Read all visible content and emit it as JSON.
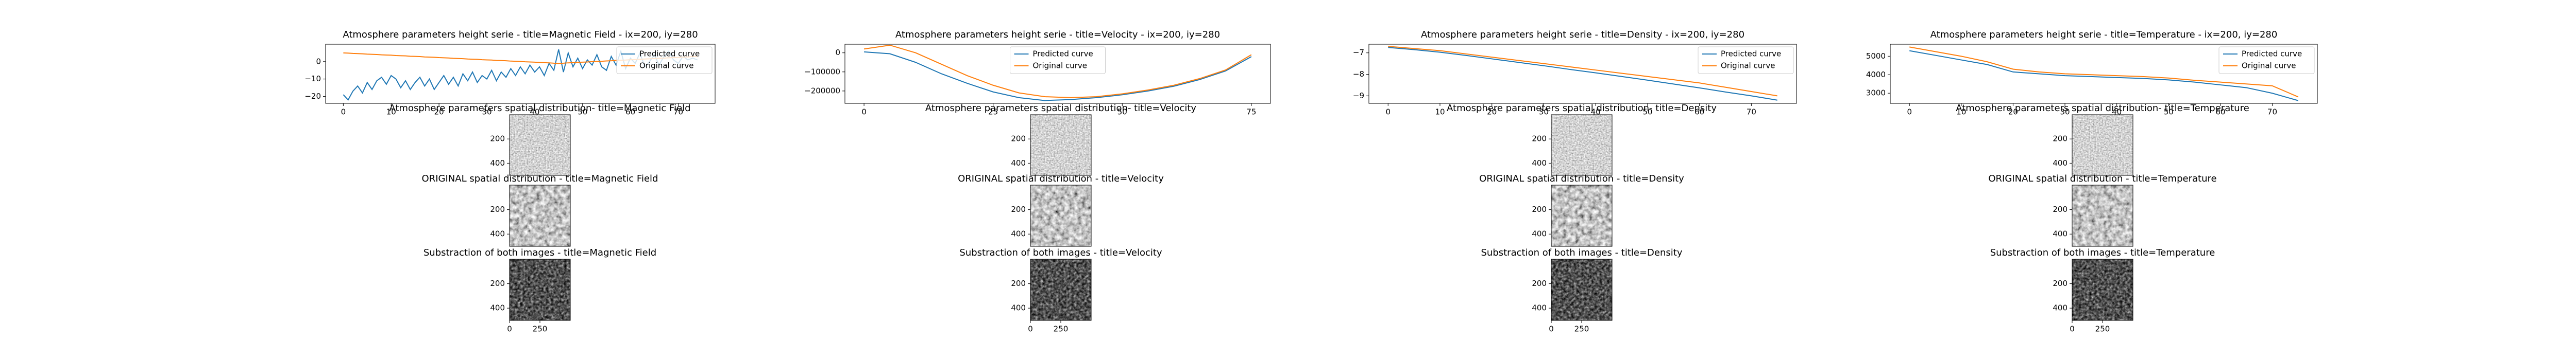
{
  "chart_data": [
    {
      "type": "line",
      "title": "Atmosphere parameters height serie - title=Magnetic Field - ix=200, iy=280",
      "x": [
        0,
        1,
        2,
        3,
        4,
        5,
        6,
        7,
        8,
        9,
        10,
        11,
        12,
        13,
        14,
        15,
        16,
        17,
        18,
        19,
        20,
        21,
        22,
        23,
        24,
        25,
        26,
        27,
        28,
        29,
        30,
        31,
        32,
        33,
        34,
        35,
        36,
        37,
        38,
        39,
        40,
        41,
        42,
        43,
        44,
        45,
        46,
        47,
        48,
        49,
        50,
        51,
        52,
        53,
        54,
        55,
        56,
        57,
        58,
        59,
        60,
        61,
        62,
        63,
        64,
        65,
        66,
        67,
        68,
        69,
        70,
        71,
        72,
        73,
        74
      ],
      "series": [
        {
          "name": "Predicted curve",
          "color": "#1f77b4",
          "values": [
            -19,
            -22,
            -17,
            -14,
            -18,
            -12,
            -16,
            -11,
            -9,
            -13,
            -8,
            -10,
            -15,
            -11,
            -16,
            -12,
            -9,
            -14,
            -10,
            -16,
            -12,
            -8,
            -13,
            -9,
            -14,
            -7,
            -11,
            -6,
            -12,
            -8,
            -10,
            -5,
            -11,
            -6,
            -9,
            -4,
            -8,
            -3,
            -7,
            -2,
            -6,
            -3,
            -8,
            -1,
            -5,
            7,
            -6,
            5,
            -3,
            2,
            -4,
            1,
            -2,
            4,
            -3,
            -5,
            3,
            -2,
            6,
            -4,
            2,
            -1,
            5,
            -3,
            0,
            4,
            -2,
            3,
            6,
            1,
            -1,
            3,
            1,
            2,
            1
          ]
        },
        {
          "name": "Original curve",
          "color": "#ff7f0e",
          "values": [
            5.0,
            4.9,
            4.7,
            4.6,
            4.5,
            4.3,
            4.2,
            4.1,
            3.9,
            3.8,
            3.7,
            3.5,
            3.4,
            3.3,
            3.1,
            3.0,
            2.9,
            2.7,
            2.6,
            2.5,
            2.3,
            2.2,
            2.1,
            1.9,
            1.8,
            1.7,
            1.5,
            1.4,
            1.3,
            1.1,
            1.0,
            0.9,
            0.7,
            0.6,
            0.5,
            0.3,
            0.2,
            0.1,
            -0.1,
            -0.2,
            -0.3,
            -0.5,
            -0.6,
            -0.7,
            -0.9,
            -1.0,
            -0.9,
            -0.7,
            -0.6,
            -0.4,
            -0.3,
            -0.2,
            0.0,
            0.1,
            0.2,
            0.4,
            0.5,
            0.7,
            0.8,
            0.9,
            1.1,
            1.2,
            1.3,
            1.5,
            1.6,
            1.8,
            1.9,
            2.0,
            2.2,
            2.3,
            2.4,
            2.6,
            2.7,
            2.9,
            3.0
          ]
        }
      ],
      "xlim": [
        -3.7,
        77.7
      ],
      "xticks": [
        0,
        10,
        20,
        30,
        40,
        50,
        60,
        70
      ],
      "ylim": [
        -24,
        10
      ],
      "yticks": [
        {
          "value": -20,
          "label": "−20"
        },
        {
          "value": -10,
          "label": "−10"
        },
        0
      ],
      "legend": "upper right"
    },
    {
      "type": "image",
      "title": "Atmosphere parameters spatial distribution- title=Magnetic Field",
      "ylim": [
        500,
        0
      ],
      "yticks": [
        200,
        400
      ]
    },
    {
      "type": "image",
      "title": "ORIGINAL spatial distribution - title=Magnetic Field",
      "ylim": [
        500,
        0
      ],
      "yticks": [
        200,
        400
      ]
    },
    {
      "type": "image",
      "title": "Substraction of both images - title=Magnetic Field",
      "ylim": [
        500,
        0
      ],
      "yticks": [
        200,
        400
      ],
      "xlim": [
        0,
        500
      ],
      "xticks": [
        0,
        250
      ]
    },
    {
      "type": "line",
      "title": "Atmosphere parameters height serie - title=Velocity - ix=200, iy=280",
      "x": [
        0,
        5,
        10,
        15,
        20,
        25,
        30,
        35,
        40,
        45,
        50,
        55,
        60,
        65,
        70,
        75
      ],
      "series": [
        {
          "name": "Predicted curve",
          "color": "#1f77b4",
          "values": [
            5000,
            -5000,
            -50000,
            -110000,
            -160000,
            -205000,
            -235000,
            -250000,
            -245000,
            -235000,
            -220000,
            -200000,
            -175000,
            -140000,
            -95000,
            -20000
          ]
        },
        {
          "name": "Original curve",
          "color": "#ff7f0e",
          "values": [
            20000,
            40000,
            0,
            -60000,
            -120000,
            -170000,
            -210000,
            -230000,
            -235000,
            -230000,
            -215000,
            -195000,
            -170000,
            -135000,
            -90000,
            -10000
          ]
        }
      ],
      "xlim": [
        -3.7,
        78.7
      ],
      "xticks": [
        0,
        25,
        50,
        75
      ],
      "ylim": [
        -265000,
        45000
      ],
      "yticks": [
        {
          "value": -200000,
          "label": "−200000"
        },
        {
          "value": -100000,
          "label": "−100000"
        },
        0
      ],
      "legend": "upper center"
    },
    {
      "type": "image",
      "title": "Atmosphere parameters spatial distribution- title=Velocity",
      "ylim": [
        500,
        0
      ],
      "yticks": [
        200,
        400
      ]
    },
    {
      "type": "image",
      "title": "ORIGINAL spatial distribution - title=Velocity",
      "ylim": [
        500,
        0
      ],
      "yticks": [
        200,
        400
      ]
    },
    {
      "type": "image",
      "title": "Substraction of both images - title=Velocity",
      "ylim": [
        500,
        0
      ],
      "yticks": [
        200,
        400
      ],
      "xlim": [
        0,
        500
      ],
      "xticks": [
        0,
        250
      ]
    },
    {
      "type": "line",
      "title": "Atmosphere parameters height serie - title=Density - ix=200, iy=280",
      "x": [
        0,
        5,
        10,
        15,
        20,
        25,
        30,
        35,
        40,
        45,
        50,
        55,
        60,
        65,
        70,
        75
      ],
      "series": [
        {
          "name": "Predicted curve",
          "color": "#1f77b4",
          "values": [
            -6.75,
            -6.85,
            -6.97,
            -7.12,
            -7.28,
            -7.44,
            -7.6,
            -7.77,
            -7.93,
            -8.1,
            -8.27,
            -8.45,
            -8.63,
            -8.82,
            -9.0,
            -9.2
          ]
        },
        {
          "name": "Original curve",
          "color": "#ff7f0e",
          "values": [
            -6.7,
            -6.8,
            -6.9,
            -7.05,
            -7.2,
            -7.35,
            -7.5,
            -7.65,
            -7.8,
            -7.95,
            -8.1,
            -8.25,
            -8.4,
            -8.6,
            -8.8,
            -9.0
          ]
        }
      ],
      "xlim": [
        -3.7,
        78.7
      ],
      "xticks": [
        0,
        10,
        20,
        30,
        40,
        50,
        60,
        70
      ],
      "ylim": [
        -9.35,
        -6.6
      ],
      "yticks": [
        {
          "value": -9,
          "label": "−9"
        },
        {
          "value": -8,
          "label": "−8"
        },
        {
          "value": -7,
          "label": "−7"
        }
      ],
      "legend": "upper right"
    },
    {
      "type": "image",
      "title": "Atmosphere parameters spatial distribution- title=Density",
      "ylim": [
        500,
        0
      ],
      "yticks": [
        200,
        400
      ]
    },
    {
      "type": "image",
      "title": "ORIGINAL spatial distribution - title=Density",
      "ylim": [
        500,
        0
      ],
      "yticks": [
        200,
        400
      ]
    },
    {
      "type": "image",
      "title": "Substraction of both images - title=Density",
      "ylim": [
        500,
        0
      ],
      "yticks": [
        200,
        400
      ],
      "xlim": [
        0,
        500
      ],
      "xticks": [
        0,
        250
      ]
    },
    {
      "type": "line",
      "title": "Atmosphere parameters height serie - title=Temperature - ix=200, iy=280",
      "x": [
        0,
        5,
        10,
        15,
        20,
        25,
        30,
        35,
        40,
        45,
        50,
        55,
        60,
        65,
        70,
        75
      ],
      "series": [
        {
          "name": "Predicted curve",
          "color": "#1f77b4",
          "values": [
            5300,
            5050,
            4800,
            4550,
            4150,
            4050,
            3950,
            3900,
            3850,
            3800,
            3720,
            3600,
            3450,
            3300,
            3000,
            2600
          ]
        },
        {
          "name": "Original curve",
          "color": "#ff7f0e",
          "values": [
            5500,
            5250,
            5000,
            4700,
            4300,
            4150,
            4050,
            4000,
            3950,
            3900,
            3820,
            3700,
            3600,
            3500,
            3400,
            2800
          ]
        }
      ],
      "xlim": [
        -3.7,
        78.7
      ],
      "xticks": [
        0,
        10,
        20,
        30,
        40,
        50,
        60,
        70
      ],
      "ylim": [
        2450,
        5650
      ],
      "yticks": [
        3000,
        4000,
        5000
      ],
      "legend": "upper right"
    },
    {
      "type": "image",
      "title": "Atmosphere parameters spatial distribution- title=Temperature",
      "ylim": [
        500,
        0
      ],
      "yticks": [
        200,
        400
      ]
    },
    {
      "type": "image",
      "title": "ORIGINAL spatial distribution - title=Temperature",
      "ylim": [
        500,
        0
      ],
      "yticks": [
        200,
        400
      ]
    },
    {
      "type": "image",
      "title": "Substraction of both images - title=Temperature",
      "ylim": [
        500,
        0
      ],
      "yticks": [
        200,
        400
      ],
      "xlim": [
        0,
        500
      ],
      "xticks": [
        0,
        250
      ]
    }
  ]
}
